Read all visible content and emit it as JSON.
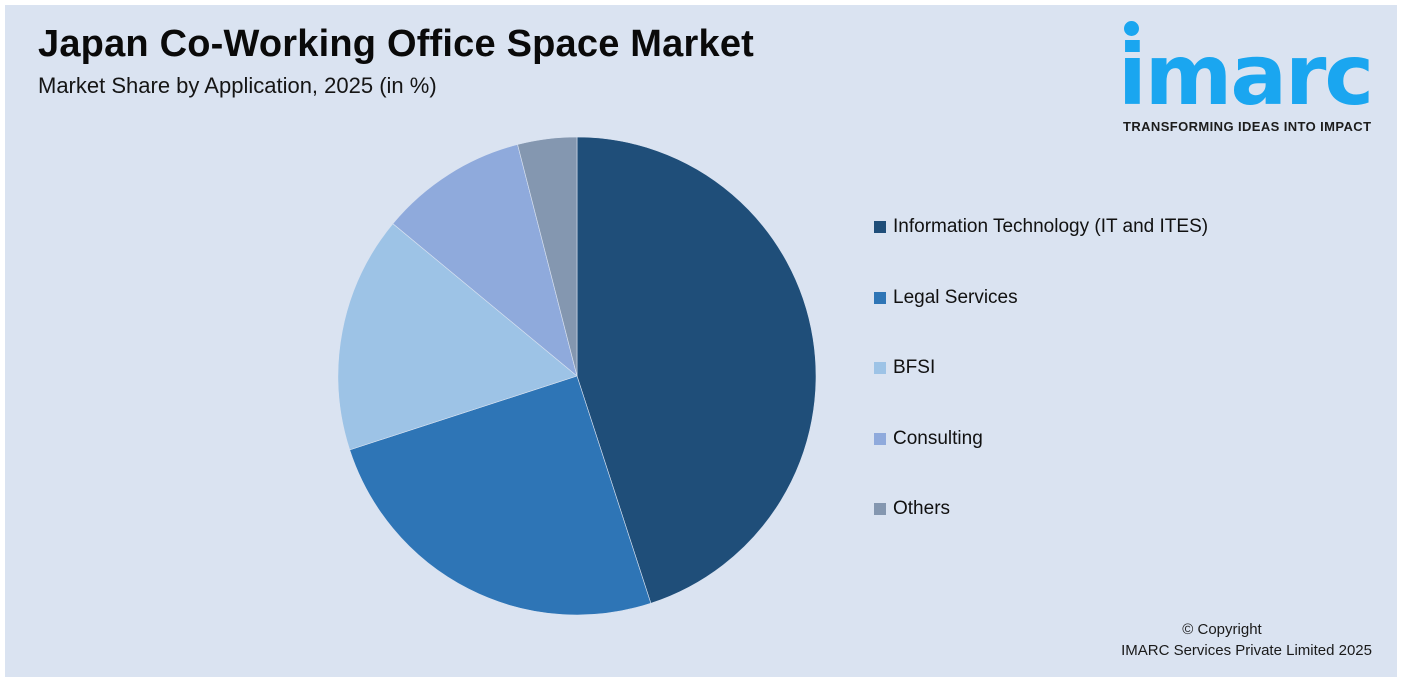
{
  "header": {
    "title": "Japan Co-Working Office Space Market",
    "subtitle": "Market Share by Application, 2025 (in %)"
  },
  "logo": {
    "wordmark": "imarc",
    "tagline": "TRANSFORMING IDEAS INTO IMPACT",
    "color": "#1aa6f0"
  },
  "legend": {
    "items": [
      {
        "label": "Information Technology (IT and ITES)",
        "color": "#1f4e79"
      },
      {
        "label": "Legal Services",
        "color": "#2e75b6"
      },
      {
        "label": "BFSI",
        "color": "#9dc3e6"
      },
      {
        "label": "Consulting",
        "color": "#8faadc"
      },
      {
        "label": "Others",
        "color": "#8497b0"
      }
    ]
  },
  "footer": {
    "copyright_line1": "© Copyright",
    "copyright_line2": "IMARC Services Private Limited 2025"
  },
  "chart_data": {
    "type": "pie",
    "title": "Japan Co-Working Office Space Market",
    "subtitle": "Market Share by Application, 2025 (in %)",
    "categories": [
      "Information Technology (IT and ITES)",
      "Legal Services",
      "BFSI",
      "Consulting",
      "Others"
    ],
    "values": [
      45,
      25,
      16,
      10,
      4
    ],
    "colors": [
      "#1f4e79",
      "#2e75b6",
      "#9dc3e6",
      "#8faadc",
      "#8497b0"
    ],
    "start_angle_deg": 0,
    "direction": "clockwise",
    "data_labels": false,
    "legend_position": "right"
  }
}
